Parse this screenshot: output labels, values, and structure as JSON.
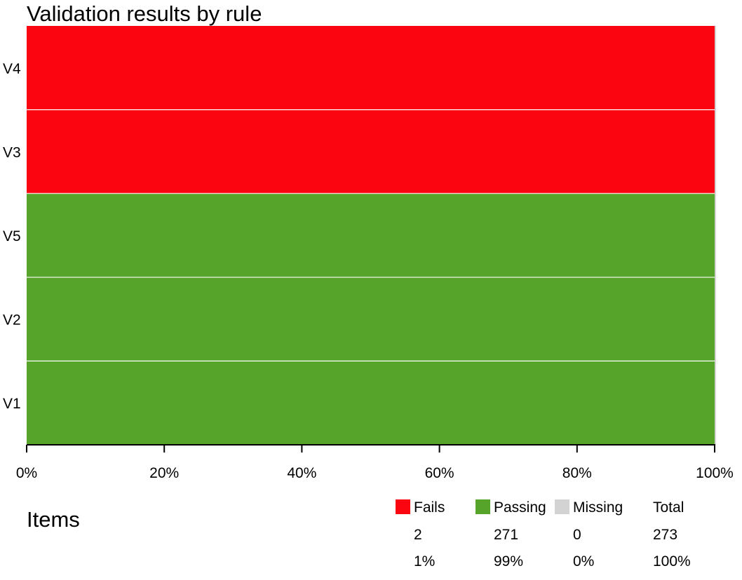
{
  "chart_data": {
    "type": "bar",
    "orientation": "horizontal",
    "stacked": true,
    "title": "Validation results by rule",
    "categories": [
      "V4",
      "V3",
      "V5",
      "V2",
      "V1"
    ],
    "series": [
      {
        "name": "Fails",
        "color": "#fb0511",
        "values": [
          100,
          100,
          0,
          0,
          0
        ]
      },
      {
        "name": "Passing",
        "color": "#56a42a",
        "values": [
          0,
          0,
          100,
          100,
          100
        ]
      },
      {
        "name": "Missing",
        "color": "#d3d3d3",
        "values": [
          0,
          0,
          0,
          0,
          0
        ]
      }
    ],
    "xlim": [
      0,
      100
    ],
    "x_ticks": [
      "0%",
      "20%",
      "40%",
      "60%",
      "80%",
      "100%"
    ],
    "grid": false
  },
  "legend": {
    "heading": "Items",
    "columns": [
      {
        "label": "Fails",
        "color": "#fb0511",
        "count": "2",
        "percent": "1%"
      },
      {
        "label": "Passing",
        "color": "#56a42a",
        "count": "271",
        "percent": "99%"
      },
      {
        "label": "Missing",
        "color": "#d3d3d3",
        "count": "0",
        "percent": "0%"
      },
      {
        "label": "Total",
        "color": "",
        "count": "273",
        "percent": "100%"
      }
    ]
  }
}
